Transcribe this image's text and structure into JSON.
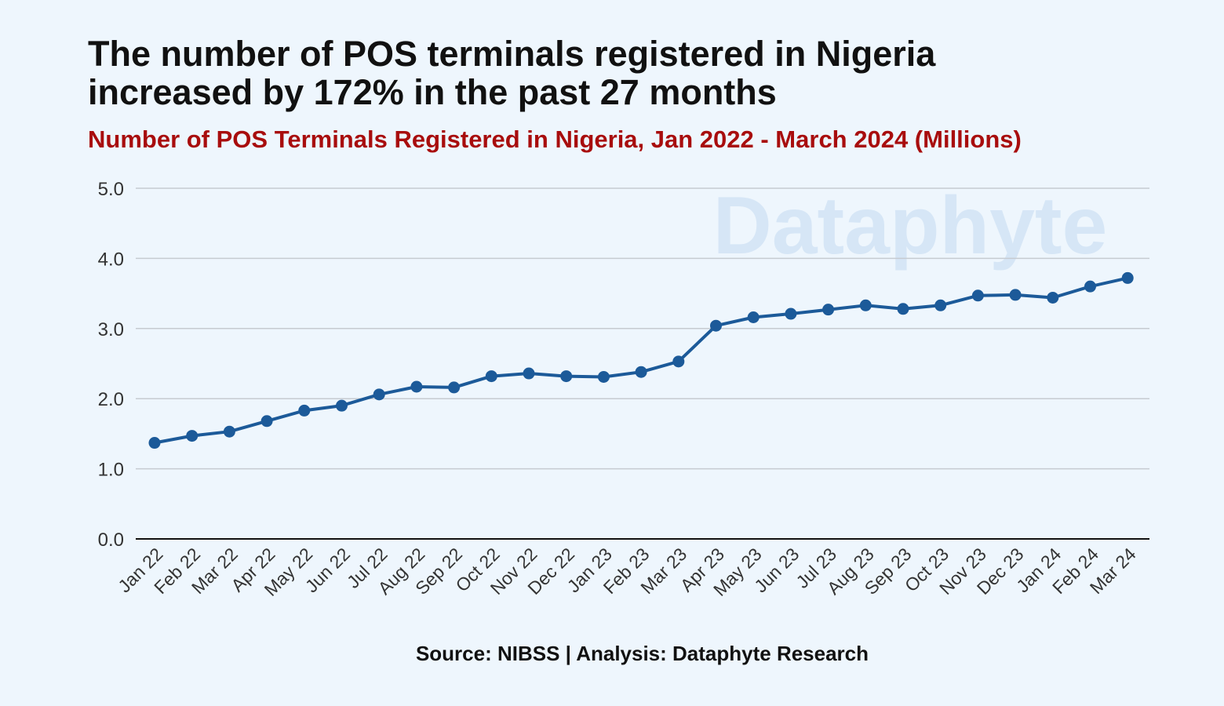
{
  "title": "The number of POS terminals registered in Nigeria increased by 172% in the past 27 months",
  "subtitle": "Number of POS Terminals Registered in Nigeria, Jan 2022 - March 2024 (Millions)",
  "watermark": "Dataphyte",
  "source": "Source: NIBSS | Analysis: Dataphyte Research",
  "colors": {
    "line": "#1c5a99",
    "grid": "#c6cbd1",
    "axis": "#111111",
    "watermark": "#d6e6f6"
  },
  "chart_data": {
    "type": "line",
    "categories": [
      "Jan 22",
      "Feb 22",
      "Mar 22",
      "Apr 22",
      "May 22",
      "Jun 22",
      "Jul 22",
      "Aug 22",
      "Sep 22",
      "Oct 22",
      "Nov 22",
      "Dec 22",
      "Jan 23",
      "Feb 23",
      "Mar 23",
      "Apr 23",
      "May 23",
      "Jun 23",
      "Jul 23",
      "Aug 23",
      "Sep 23",
      "Oct 23",
      "Nov 23",
      "Dec 23",
      "Jan 24",
      "Feb 24",
      "Mar 24"
    ],
    "series": [
      {
        "name": "POS Terminals (Millions)",
        "values": [
          1.37,
          1.47,
          1.53,
          1.68,
          1.83,
          1.9,
          2.06,
          2.17,
          2.16,
          2.32,
          2.36,
          2.32,
          2.31,
          2.38,
          2.53,
          3.04,
          3.16,
          3.21,
          3.27,
          3.33,
          3.28,
          3.33,
          3.47,
          3.48,
          3.44,
          3.6,
          3.72
        ]
      }
    ],
    "ylim": [
      0,
      5
    ],
    "yticks": [
      "0.0",
      "1.0",
      "2.0",
      "3.0",
      "4.0",
      "5.0"
    ],
    "grid": true
  }
}
